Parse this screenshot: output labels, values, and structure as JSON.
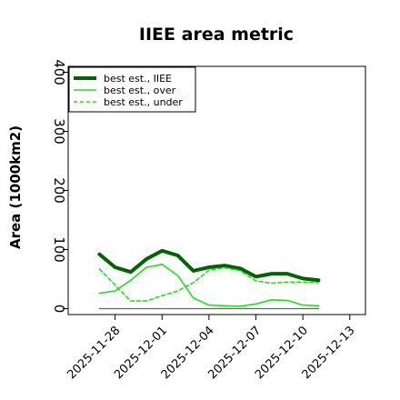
{
  "chart_data": {
    "type": "line",
    "title": "IIEE area metric",
    "xlabel": "",
    "ylabel": "Area (1000km2)",
    "ylim": [
      -10,
      410
    ],
    "xlim": [
      "2025-11-25",
      "2025-12-14"
    ],
    "grid": false,
    "legend_position": "top-left",
    "y_ticks": [
      0,
      100,
      200,
      300,
      400
    ],
    "x_ticks": [
      "2025-11-28",
      "2025-12-01",
      "2025-12-04",
      "2025-12-07",
      "2025-12-10",
      "2025-12-13"
    ],
    "x": [
      "2025-11-27",
      "2025-11-28",
      "2025-11-29",
      "2025-11-30",
      "2025-12-01",
      "2025-12-02",
      "2025-12-03",
      "2025-12-04",
      "2025-12-05",
      "2025-12-06",
      "2025-12-07",
      "2025-12-08",
      "2025-12-09",
      "2025-12-10",
      "2025-12-11"
    ],
    "series": [
      {
        "name": "best est., IIEE",
        "style": "solid-thick",
        "color": "#006400",
        "values": [
          92,
          70,
          62,
          84,
          98,
          90,
          64,
          70,
          73,
          68,
          54,
          59,
          59,
          51,
          48
        ]
      },
      {
        "name": "best est., over",
        "style": "solid",
        "color": "#22dd22",
        "values": [
          26,
          30,
          48,
          70,
          75,
          56,
          18,
          6,
          5,
          4,
          8,
          15,
          14,
          6,
          5
        ]
      },
      {
        "name": "best est., under",
        "style": "dashed",
        "color": "#22dd22",
        "values": [
          67,
          40,
          13,
          13,
          22,
          30,
          44,
          65,
          69,
          64,
          47,
          43,
          45,
          45,
          44
        ]
      },
      {
        "name": "",
        "style": "solid-thin",
        "color": "#666666",
        "values": [
          0,
          0,
          0,
          0,
          0,
          0,
          0,
          0,
          0,
          0,
          0,
          0,
          0,
          0,
          0
        ]
      }
    ]
  }
}
